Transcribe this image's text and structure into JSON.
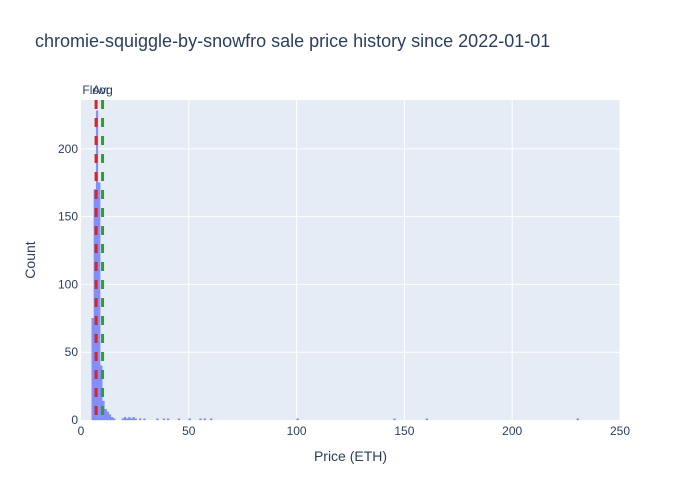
{
  "chart_data": {
    "type": "bar",
    "title": "chromie-squiggle-by-snowfro sale price history since 2022-01-01",
    "xlabel": "Price (ETH)",
    "ylabel": "Count",
    "xlim": [
      0,
      250
    ],
    "ylim": [
      0,
      236
    ],
    "x_ticks": [
      0,
      50,
      100,
      150,
      200,
      250
    ],
    "y_ticks": [
      0,
      50,
      100,
      150,
      200
    ],
    "grid": true,
    "bin_width": 1,
    "bins": [
      {
        "x": 5.5,
        "count": 75
      },
      {
        "x": 6.5,
        "count": 170
      },
      {
        "x": 7.5,
        "count": 228
      },
      {
        "x": 8.5,
        "count": 175
      },
      {
        "x": 9.5,
        "count": 40
      },
      {
        "x": 10.5,
        "count": 14
      },
      {
        "x": 11.5,
        "count": 8
      },
      {
        "x": 12.5,
        "count": 6
      },
      {
        "x": 13.5,
        "count": 4
      },
      {
        "x": 14.5,
        "count": 2
      },
      {
        "x": 15.5,
        "count": 1
      },
      {
        "x": 19.5,
        "count": 1
      },
      {
        "x": 20.5,
        "count": 2
      },
      {
        "x": 21.5,
        "count": 1
      },
      {
        "x": 22.5,
        "count": 2
      },
      {
        "x": 23.5,
        "count": 1
      },
      {
        "x": 24.5,
        "count": 2
      },
      {
        "x": 25.5,
        "count": 1
      },
      {
        "x": 27.5,
        "count": 1
      },
      {
        "x": 29.5,
        "count": 1
      },
      {
        "x": 35.5,
        "count": 1
      },
      {
        "x": 38.5,
        "count": 1
      },
      {
        "x": 40.5,
        "count": 1
      },
      {
        "x": 45.5,
        "count": 1
      },
      {
        "x": 50.5,
        "count": 1
      },
      {
        "x": 55.5,
        "count": 1
      },
      {
        "x": 57.5,
        "count": 1
      },
      {
        "x": 60.5,
        "count": 1
      },
      {
        "x": 100.5,
        "count": 1
      },
      {
        "x": 145.5,
        "count": 1
      },
      {
        "x": 160.5,
        "count": 1
      },
      {
        "x": 230.5,
        "count": 1
      }
    ],
    "reference_lines": [
      {
        "label": "Floor",
        "x": 7,
        "color": "#d62728"
      },
      {
        "label": "Avg",
        "x": 10,
        "color": "#2ca02c"
      }
    ],
    "bar_color": "#636efa",
    "plot_bg": "#e5ecf6"
  }
}
